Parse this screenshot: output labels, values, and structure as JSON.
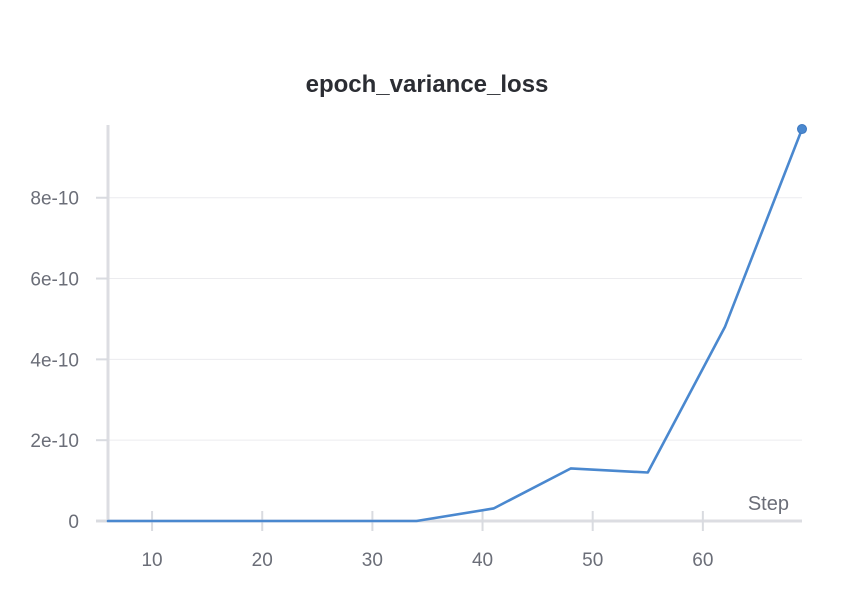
{
  "chart_data": {
    "type": "line",
    "title": "epoch_variance_loss",
    "xlabel": "Step",
    "ylabel": "",
    "xlim": [
      6,
      69
    ],
    "ylim": [
      0,
      9.8e-10
    ],
    "x_ticks": [
      10,
      20,
      30,
      40,
      50,
      60
    ],
    "y_ticks": [
      0,
      2e-10,
      4e-10,
      6e-10,
      8e-10
    ],
    "y_tick_labels": [
      "0",
      "2e-10",
      "4e-10",
      "6e-10",
      "8e-10"
    ],
    "grid": true,
    "series": [
      {
        "color": "#4a88cf",
        "x": [
          6,
          13,
          20,
          27,
          34,
          41,
          48,
          55,
          62,
          69
        ],
        "y": [
          0,
          0,
          0,
          0,
          0,
          3.1e-11,
          1.3e-10,
          1.2e-10,
          4.8e-10,
          9.7e-10
        ],
        "last_point_marker": true
      }
    ]
  }
}
